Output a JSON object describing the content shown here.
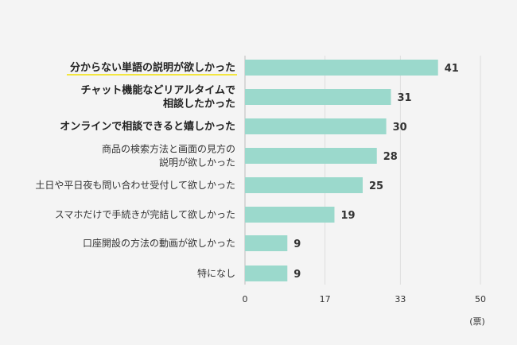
{
  "chart_data": {
    "type": "bar",
    "orientation": "horizontal",
    "categories": [
      [
        "分からない単語の説明が欲しかった"
      ],
      [
        "チャット機能などリアルタイムで",
        "相談したかった"
      ],
      [
        "オンラインで相談できると嬉しかった"
      ],
      [
        "商品の検索方法と画面の見方の",
        "説明が欲しかった"
      ],
      [
        "土日や平日夜も問い合わせ受付して欲しかった"
      ],
      [
        "スマホだけで手続きが完結して欲しかった"
      ],
      [
        "口座開設の方法の動画が欲しかった"
      ],
      [
        "特になし"
      ]
    ],
    "emphasized": [
      true,
      true,
      true,
      false,
      false,
      false,
      false,
      false
    ],
    "highlighted_index": 0,
    "values": [
      41,
      31,
      30,
      28,
      25,
      19,
      9,
      9
    ],
    "xlim": [
      0,
      50
    ],
    "xticks": [
      0,
      17,
      33,
      50
    ],
    "xtick_labels": [
      "0",
      "17",
      "33",
      "50"
    ],
    "unit_label": "(票)",
    "grid": true,
    "colors": {
      "bar": "#9bd9cc",
      "highlight_underline": "#f3e640",
      "grid": "#dddddd",
      "axis": "#bbbbbb"
    }
  }
}
